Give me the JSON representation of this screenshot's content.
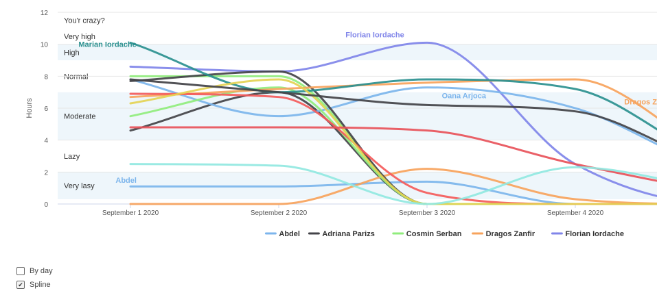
{
  "controls": [
    {
      "label": "By day",
      "checked": false
    },
    {
      "label": "Spline",
      "checked": true
    }
  ],
  "chart_data": {
    "type": "line",
    "spline": true,
    "ylabel": "Hours",
    "xlabel": "",
    "ylim": [
      0,
      12
    ],
    "yticks": [
      0,
      2,
      4,
      6,
      8,
      10,
      12
    ],
    "x": [
      0,
      1,
      2,
      3,
      4,
      5
    ],
    "xticks": [
      {
        "x": 0,
        "label": "September 1 2020"
      },
      {
        "x": 1,
        "label": "September 2 2020"
      },
      {
        "x": 2,
        "label": "September 3 2020"
      },
      {
        "x": 3,
        "label": "September 4 2020"
      }
    ],
    "xlim": [
      0,
      3.6
    ],
    "grid": true,
    "legend": "bottom-right",
    "bands": [
      {
        "from": 0.3,
        "to": 2,
        "label": "Very lasy",
        "shaded": true
      },
      {
        "from": 2,
        "to": 4,
        "label": "Lazy",
        "shaded": false
      },
      {
        "from": 4,
        "to": 7,
        "label": "Moderate",
        "shaded": true
      },
      {
        "from": 7,
        "to": 9,
        "label": "Normal",
        "shaded": false
      },
      {
        "from": 9,
        "to": 10,
        "label": "High",
        "shaded": true
      },
      {
        "from": 10,
        "to": 11,
        "label": "Very high",
        "shaded": false
      },
      {
        "from": 11,
        "to": 12,
        "label": "You'r crazy?",
        "shaded": false
      }
    ],
    "series": [
      {
        "name": "Abdel",
        "color": "#7cb5ec",
        "legend": true,
        "values": [
          1.1,
          1.1,
          1.4,
          0.0,
          0.0,
          0.0
        ]
      },
      {
        "name": "Adriana Parizs",
        "color": "#434348",
        "legend": true,
        "values": [
          4.6,
          7.0,
          0.0,
          0.0,
          0.0,
          0.0
        ]
      },
      {
        "name": "Cosmin Serban",
        "color": "#90ed7d",
        "legend": true,
        "values": [
          8.0,
          8.0,
          0.0,
          0.0,
          0.0,
          0.0
        ]
      },
      {
        "name": "Dragos Zanfir",
        "color": "#f7a35c",
        "legend": true,
        "values": [
          0.0,
          0.0,
          2.2,
          0.3,
          0.0,
          0.0
        ]
      },
      {
        "name": "Florian Iordache",
        "color": "#8085e9",
        "legend": true,
        "values": [
          8.6,
          8.3,
          10.1,
          2.5,
          0.0,
          0.0
        ]
      },
      {
        "name": "",
        "color": "#7cb5ec",
        "legend": false,
        "values": [
          7.8,
          5.5,
          7.3,
          6.0,
          2.0,
          1.0
        ]
      },
      {
        "name": "",
        "color": "#434348",
        "legend": false,
        "values": [
          7.7,
          8.3,
          0.0,
          0.0,
          0.0,
          0.0
        ]
      },
      {
        "name": "",
        "color": "#90ed7d",
        "legend": false,
        "values": [
          5.5,
          7.3,
          0.0,
          0.0,
          0.0,
          0.0
        ]
      },
      {
        "name": "",
        "color": "#f7a35c",
        "legend": false,
        "values": [
          6.7,
          7.2,
          7.6,
          7.8,
          3.0,
          2.0
        ]
      },
      {
        "name": "",
        "color": "#2b908f",
        "legend": false,
        "values": [
          10.1,
          7.0,
          7.8,
          7.2,
          2.5,
          1.5
        ]
      },
      {
        "name": "",
        "color": "#f45b5b",
        "legend": false,
        "values": [
          6.9,
          6.7,
          0.7,
          0.0,
          0.0,
          0.0
        ]
      },
      {
        "name": "",
        "color": "#e4d354",
        "legend": false,
        "values": [
          6.3,
          7.8,
          0.0,
          0.0,
          0.0,
          0.0
        ]
      },
      {
        "name": "",
        "color": "#e8535a",
        "legend": false,
        "values": [
          4.8,
          4.8,
          4.6,
          2.5,
          0.8,
          0.4
        ]
      },
      {
        "name": "",
        "color": "#91e8e1",
        "legend": false,
        "values": [
          2.5,
          2.4,
          0.0,
          2.3,
          0.9,
          0.5
        ]
      },
      {
        "name": "",
        "color": "#434348",
        "legend": false,
        "values": [
          7.8,
          7.0,
          6.2,
          5.8,
          2.2,
          1.0
        ]
      }
    ],
    "annotations": [
      {
        "text": "Marian Iordache",
        "x": -0.35,
        "y": 10.0,
        "color": "#2b908f"
      },
      {
        "text": "Florian Iordache",
        "x": 1.45,
        "y": 10.6,
        "color": "#8085e9"
      },
      {
        "text": "Oana Arjoca",
        "x": 2.1,
        "y": 6.8,
        "color": "#7cb5ec"
      },
      {
        "text": "Abdel",
        "x": -0.1,
        "y": 1.5,
        "color": "#7cb5ec"
      },
      {
        "text": "Dragos Zanfir",
        "x": 3.33,
        "y": 6.4,
        "color": "#f7a35c"
      }
    ]
  }
}
